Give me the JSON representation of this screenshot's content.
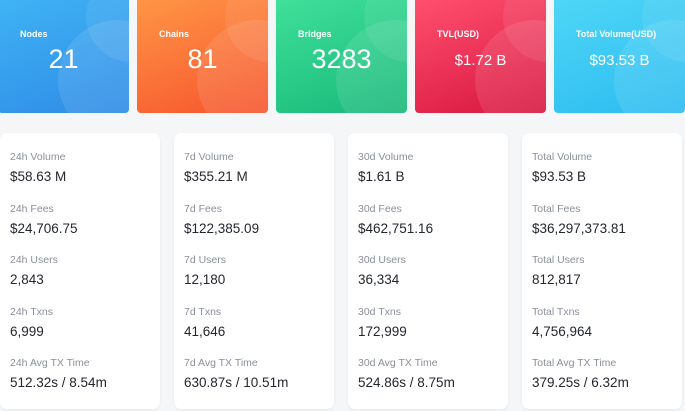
{
  "stats": [
    {
      "label": "Nodes",
      "value": "21"
    },
    {
      "label": "Chains",
      "value": "81"
    },
    {
      "label": "Bridges",
      "value": "3283"
    },
    {
      "label": "TVL(USD)",
      "value": "$1.72 B"
    },
    {
      "label": "Total Volume(USD)",
      "value": "$93.53 B"
    }
  ],
  "columns": [
    {
      "metrics": [
        {
          "label": "24h Volume",
          "value": "$58.63 M"
        },
        {
          "label": "24h Fees",
          "value": "$24,706.75"
        },
        {
          "label": "24h Users",
          "value": "2,843"
        },
        {
          "label": "24h Txns",
          "value": "6,999"
        },
        {
          "label": "24h Avg TX Time",
          "value": "512.32s / 8.54m"
        }
      ]
    },
    {
      "metrics": [
        {
          "label": "7d Volume",
          "value": "$355.21 M"
        },
        {
          "label": "7d Fees",
          "value": "$122,385.09"
        },
        {
          "label": "7d Users",
          "value": "12,180"
        },
        {
          "label": "7d Txns",
          "value": "41,646"
        },
        {
          "label": "7d Avg TX Time",
          "value": "630.87s / 10.51m"
        }
      ]
    },
    {
      "metrics": [
        {
          "label": "30d Volume",
          "value": "$1.61 B"
        },
        {
          "label": "30d Fees",
          "value": "$462,751.16"
        },
        {
          "label": "30d Users",
          "value": "36,334"
        },
        {
          "label": "30d Txns",
          "value": "172,999"
        },
        {
          "label": "30d Avg TX Time",
          "value": "524.86s / 8.75m"
        }
      ]
    },
    {
      "metrics": [
        {
          "label": "Total Volume",
          "value": "$93.53 B"
        },
        {
          "label": "Total Fees",
          "value": "$36,297,373.81"
        },
        {
          "label": "Total Users",
          "value": "812,817"
        },
        {
          "label": "Total Txns",
          "value": "4,756,964"
        },
        {
          "label": "Total Avg TX Time",
          "value": "379.25s / 6.32m"
        }
      ]
    }
  ]
}
